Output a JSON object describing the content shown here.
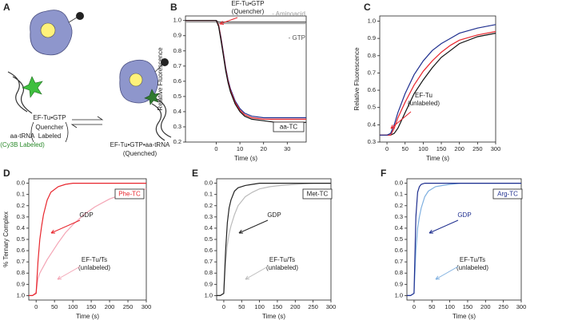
{
  "diagram": {
    "label": "A",
    "texts": [
      "EF-Tu•GTP",
      "Quencher",
      "Labeled",
      "aa-tRNA",
      "(Cy3B Labeled)",
      "EF-Tu•GTP•aa-tRNA",
      "(Quenched)"
    ]
  },
  "chart_data": [
    {
      "type": "line",
      "label": "B",
      "xlabel": "Time (s)",
      "ylabel": "Relative Fluorescence",
      "xlim": [
        -13,
        38
      ],
      "ylim": [
        0.2,
        1.03
      ],
      "xticks": [
        0,
        10,
        20,
        30
      ],
      "yticks": [
        0.2,
        0.3,
        0.4,
        0.5,
        0.6,
        0.7,
        0.8,
        0.9,
        {
          "value": 1,
          "label": "1.0"
        }
      ],
      "x": [
        -13,
        -8,
        -4,
        0,
        1,
        2,
        3,
        4,
        5,
        6,
        8,
        10,
        12,
        15,
        20,
        25,
        30,
        38
      ],
      "series": [
        {
          "name": "- Aminoacid",
          "color": "#9a9a9a",
          "values": [
            0.99,
            0.99,
            0.99,
            0.99,
            0.98,
            0.98,
            0.98,
            0.98,
            0.98,
            0.98,
            0.98,
            0.98,
            0.98,
            0.98,
            0.98,
            0.98,
            0.98,
            0.98
          ]
        },
        {
          "name": "- GTP",
          "color": "#555555",
          "values": [
            1.0,
            1.0,
            1.0,
            1.0,
            0.99,
            0.99,
            0.99,
            0.99,
            0.99,
            0.99,
            0.99,
            0.99,
            0.99,
            0.99,
            0.99,
            0.99,
            0.99,
            0.99
          ]
        },
        {
          "color": "#1f2f8f",
          "values": [
            1.0,
            1.0,
            1.0,
            1.0,
            0.97,
            0.89,
            0.79,
            0.69,
            0.61,
            0.55,
            0.47,
            0.42,
            0.39,
            0.37,
            0.36,
            0.36,
            0.36,
            0.36
          ]
        },
        {
          "color": "#e8262d",
          "values": [
            1.0,
            1.0,
            1.0,
            1.0,
            0.97,
            0.88,
            0.78,
            0.68,
            0.6,
            0.54,
            0.46,
            0.41,
            0.38,
            0.36,
            0.35,
            0.35,
            0.35,
            0.35
          ]
        },
        {
          "color": "#111111",
          "values": [
            1.0,
            1.0,
            1.0,
            1.0,
            0.96,
            0.87,
            0.77,
            0.67,
            0.59,
            0.53,
            0.45,
            0.4,
            0.37,
            0.35,
            0.34,
            0.33,
            0.33,
            0.33
          ]
        }
      ],
      "box_label": "aa-TC",
      "box_color": "#111111",
      "annotations": [
        {
          "lines": [
            "EF-Tu•GTP",
            "(Quencher)"
          ],
          "color": "#222222",
          "arrow_color": "#e8262d"
        }
      ]
    },
    {
      "type": "line",
      "label": "C",
      "xlabel": "Time (s)",
      "ylabel": "Relative Fluorescence",
      "xlim": [
        -20,
        300
      ],
      "ylim": [
        0.3,
        1.03
      ],
      "xticks": [
        0,
        50,
        100,
        150,
        200,
        250,
        300
      ],
      "yticks": [
        0.3,
        0.4,
        0.5,
        0.6,
        0.7,
        0.8,
        0.9,
        {
          "value": 1,
          "label": "1.0"
        }
      ],
      "x": [
        -20,
        -10,
        0,
        10,
        20,
        30,
        50,
        75,
        100,
        125,
        150,
        175,
        200,
        250,
        300
      ],
      "series": [
        {
          "color": "#111111",
          "values": [
            0.34,
            0.34,
            0.34,
            0.34,
            0.35,
            0.38,
            0.47,
            0.58,
            0.66,
            0.73,
            0.79,
            0.83,
            0.87,
            0.91,
            0.93
          ]
        },
        {
          "color": "#e8262d",
          "values": [
            0.34,
            0.34,
            0.34,
            0.34,
            0.38,
            0.44,
            0.53,
            0.63,
            0.71,
            0.77,
            0.82,
            0.86,
            0.89,
            0.92,
            0.94
          ]
        },
        {
          "color": "#1f2f8f",
          "values": [
            0.34,
            0.34,
            0.34,
            0.35,
            0.4,
            0.47,
            0.58,
            0.69,
            0.77,
            0.83,
            0.87,
            0.9,
            0.93,
            0.96,
            0.98
          ]
        }
      ],
      "annotations": [
        {
          "lines": [
            "EF-Tu",
            "(unlabeled)"
          ],
          "color": "#222222",
          "arrow_color": "#e8262d"
        }
      ]
    },
    {
      "type": "line",
      "label": "D",
      "xlabel": "Time (s)",
      "ylabel": "% Ternary Complex",
      "xlim": [
        -20,
        300
      ],
      "ylim": [
        1.04,
        -0.04
      ],
      "xticks": [
        0,
        50,
        100,
        150,
        200,
        250,
        300
      ],
      "yticks": [
        {
          "value": 0,
          "label": "0.0"
        },
        0.1,
        0.2,
        0.3,
        0.4,
        0.5,
        0.6,
        0.7,
        0.8,
        0.9,
        {
          "value": 1,
          "label": "1.0"
        }
      ],
      "x": [
        -20,
        -10,
        0,
        5,
        10,
        15,
        20,
        30,
        40,
        60,
        80,
        100,
        130,
        160,
        200,
        250,
        300
      ],
      "series": [
        {
          "color": "#f4a5b5",
          "values": [
            1.0,
            1.0,
            0.97,
            0.85,
            0.8,
            0.77,
            0.74,
            0.68,
            0.63,
            0.53,
            0.44,
            0.37,
            0.28,
            0.21,
            0.14,
            0.08,
            0.05
          ]
        },
        {
          "color": "#e8262d",
          "values": [
            1.0,
            1.0,
            0.98,
            0.7,
            0.5,
            0.38,
            0.28,
            0.15,
            0.08,
            0.03,
            0.01,
            0,
            0,
            0,
            0,
            0,
            0
          ]
        }
      ],
      "box_label": "Phe-TC",
      "box_color": "#e8262d",
      "annotations": [
        {
          "lines": [
            "GDP"
          ],
          "color": "#222222",
          "arrow_color": "#e8262d"
        },
        {
          "lines": [
            "EF-Tu/Ts",
            "(unlabeled)"
          ],
          "color": "#222222",
          "arrow_color": "#f4a5b5"
        }
      ]
    },
    {
      "type": "line",
      "label": "E",
      "xlabel": "Time (s)",
      "xlim": [
        -20,
        300
      ],
      "ylim": [
        1.04,
        -0.04
      ],
      "xticks": [
        0,
        50,
        100,
        150,
        200,
        250,
        300
      ],
      "yticks": [
        {
          "value": 0,
          "label": "0.0"
        },
        0.1,
        0.2,
        0.3,
        0.4,
        0.5,
        0.6,
        0.7,
        0.8,
        0.9,
        {
          "value": 1,
          "label": "1.0"
        }
      ],
      "x": [
        -20,
        -10,
        0,
        5,
        10,
        15,
        20,
        30,
        40,
        60,
        80,
        100,
        130,
        160,
        200,
        250,
        300
      ],
      "series": [
        {
          "color": "#bbbbbb",
          "values": [
            1.0,
            1.0,
            0.98,
            0.7,
            0.55,
            0.45,
            0.38,
            0.28,
            0.2,
            0.12,
            0.08,
            0.05,
            0.03,
            0.02,
            0.01,
            0,
            0
          ]
        },
        {
          "color": "#222222",
          "values": [
            1.0,
            1.0,
            0.98,
            0.6,
            0.35,
            0.22,
            0.15,
            0.07,
            0.04,
            0.02,
            0.01,
            0,
            0,
            0,
            0,
            0,
            0
          ]
        }
      ],
      "box_label": "Met-TC",
      "box_color": "#222222",
      "annotations": [
        {
          "lines": [
            "GDP"
          ],
          "color": "#222222",
          "arrow_color": "#222222"
        },
        {
          "lines": [
            "EF-Tu/Ts",
            "(unlabeled)"
          ],
          "color": "#222222",
          "arrow_color": "#bbbbbb"
        }
      ]
    },
    {
      "type": "line",
      "label": "F",
      "xlabel": "Time (s)",
      "xlim": [
        -20,
        300
      ],
      "ylim": [
        1.04,
        -0.04
      ],
      "xticks": [
        0,
        50,
        100,
        150,
        200,
        250,
        300
      ],
      "yticks": [
        {
          "value": 0,
          "label": "0.0"
        },
        0.1,
        0.2,
        0.3,
        0.4,
        0.5,
        0.6,
        0.7,
        0.8,
        0.9,
        {
          "value": 1,
          "label": "1.0"
        }
      ],
      "x": [
        -20,
        -10,
        0,
        5,
        10,
        15,
        20,
        30,
        40,
        60,
        80,
        100,
        130,
        160,
        200,
        250,
        300
      ],
      "series": [
        {
          "color": "#7fb0e0",
          "values": [
            1.0,
            1.0,
            0.98,
            0.6,
            0.4,
            0.3,
            0.22,
            0.12,
            0.07,
            0.03,
            0.02,
            0.01,
            0,
            0,
            0,
            0,
            0
          ]
        },
        {
          "color": "#1f2f8f",
          "values": [
            1.0,
            1.0,
            0.98,
            0.3,
            0.08,
            0.03,
            0.01,
            0,
            0,
            0,
            0,
            0,
            0,
            0,
            0,
            0,
            0
          ]
        }
      ],
      "box_label": "Arg-TC",
      "box_color": "#1f2f8f",
      "annotations": [
        {
          "lines": [
            "GDP"
          ],
          "color": "#1f2f8f",
          "arrow_color": "#1f2f8f"
        },
        {
          "lines": [
            "EF-Tu/Ts",
            "(unlabeled)"
          ],
          "color": "#222222",
          "arrow_color": "#7fb0e0"
        }
      ]
    }
  ]
}
